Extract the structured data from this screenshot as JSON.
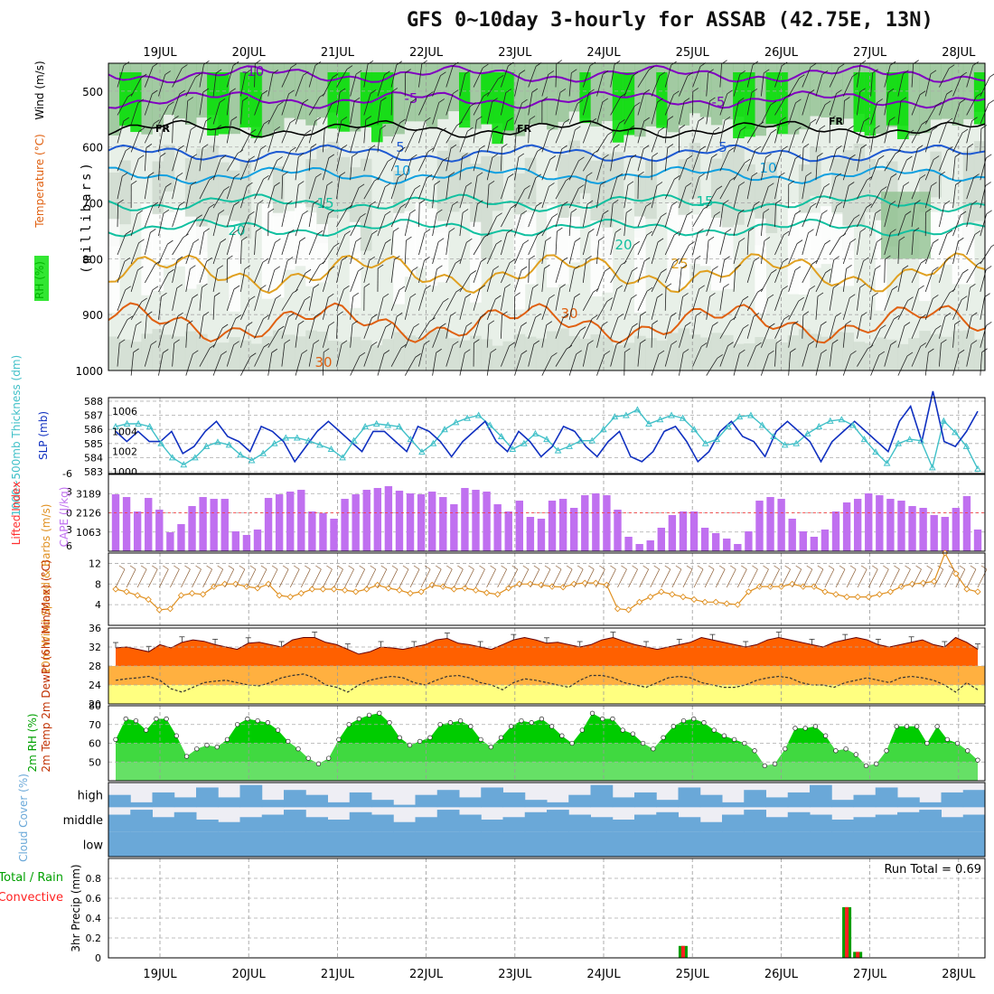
{
  "title": "GFS 0~10day 3-hourly for ASSAB (42.75E, 13N)",
  "colors": {
    "rh_light": "#d0dcd0",
    "rh_mid": "#90c090",
    "rh_dark": "#00e000",
    "temp_cold": "#8000c0",
    "temp_mid": "#1e5ad2",
    "temp_cool": "#10a0e0",
    "temp_warm": "#10c0a0",
    "temp_hot": "#e0a020",
    "temp_vhot": "#e06010",
    "thickness": "#40c0c8",
    "slp": "#1030c0",
    "cape": "#c070f0",
    "wind": "#e09020",
    "temp_fill": "#ff6000",
    "dew_fill": "#ffb040",
    "rh2m": "#00cc00",
    "cloud": "#6aa8d8",
    "precip_total": "#00a000",
    "precip_conv": "#ff2020"
  },
  "days": [
    "19JUL",
    "20JUL",
    "21JUL",
    "22JUL",
    "23JUL",
    "24JUL",
    "25JUL",
    "26JUL",
    "27JUL",
    "28JUL"
  ],
  "chart_data": [
    {
      "type": "heatmap",
      "name": "upper_air",
      "ylabel": "(millibars)",
      "legend_labels": [
        "RH (%)",
        "Temperature (°C)",
        "Wind (m/s)"
      ],
      "y_ticks": [
        500,
        600,
        700,
        800,
        900,
        1000
      ],
      "ylim": [
        1000,
        450
      ],
      "contour_labels": [
        "-10",
        "-5",
        "-5",
        "FR",
        "FR",
        "FR",
        "5",
        "5",
        "10",
        "10",
        "15",
        "15",
        "20",
        "20",
        "25",
        "30",
        "30"
      ],
      "isotherms": [
        {
          "temp": -10,
          "pressure": 470
        },
        {
          "temp": -5,
          "pressure": 515
        },
        {
          "temp": 0,
          "pressure": 568
        },
        {
          "temp": 5,
          "pressure": 612
        },
        {
          "temp": 10,
          "pressure": 650
        },
        {
          "temp": 15,
          "pressure": 700
        },
        {
          "temp": 20,
          "pressure": 745
        },
        {
          "temp": 25,
          "pressure": 825
        },
        {
          "temp": 30,
          "pressure": 915
        }
      ]
    },
    {
      "type": "line",
      "name": "thickness_slp",
      "ylabel_left": "1000~500mb Thickness (dm)",
      "ylabel_right": "SLP (mb)",
      "left_ticks": [
        "588",
        "587",
        "586",
        "585",
        "584",
        "583"
      ],
      "right_ticks": [
        "1006",
        "1004",
        "1002",
        "1000"
      ],
      "ylim_left": [
        583,
        588
      ],
      "ylim_right": [
        1000,
        1007
      ],
      "series": [
        {
          "name": "Thickness",
          "values": [
            586.2,
            586.4,
            586.4,
            586.2,
            585.0,
            584.0,
            583.5,
            584.0,
            584.8,
            585.1,
            584.9,
            584.2,
            583.8,
            584.3,
            585.0,
            585.4,
            585.4,
            585.2,
            584.9,
            584.6,
            584.0,
            585.2,
            586.2,
            586.4,
            586.3,
            586.2,
            585.3,
            584.4,
            585.0,
            586.0,
            586.5,
            586.8,
            587.0,
            586.3,
            585.5,
            584.6,
            585.0,
            585.7,
            585.3,
            584.5,
            584.8,
            585.2,
            585.2,
            586.0,
            586.9,
            587.0,
            587.4,
            586.4,
            586.7,
            587.0,
            586.8,
            586.0,
            585.0,
            585.3,
            586.2,
            586.9,
            587.0,
            586.3,
            585.5,
            584.9,
            585.0,
            585.7,
            586.2,
            586.6,
            586.7,
            586.3,
            585.3,
            584.4,
            583.6,
            585.0,
            585.3,
            585.2,
            583.3,
            586.6,
            585.8,
            584.8,
            583.2
          ]
        },
        {
          "name": "SLP",
          "values": [
            1004.0,
            1003.0,
            1004.0,
            1003.0,
            1003.0,
            1004.0,
            1001.8,
            1002.5,
            1004.0,
            1005.0,
            1003.5,
            1003.0,
            1002.0,
            1004.5,
            1004.0,
            1003.0,
            1001.0,
            1002.5,
            1004.0,
            1005.0,
            1004.0,
            1003.0,
            1002.0,
            1004.0,
            1004.0,
            1003.0,
            1002.0,
            1004.5,
            1004.0,
            1003.0,
            1001.5,
            1003.0,
            1004.0,
            1005.0,
            1003.0,
            1002.0,
            1004.0,
            1003.0,
            1001.5,
            1002.5,
            1004.5,
            1004.0,
            1002.5,
            1001.5,
            1003.0,
            1004.0,
            1001.5,
            1001.0,
            1002.0,
            1004.0,
            1004.5,
            1003.0,
            1001.0,
            1002.0,
            1004.0,
            1005.0,
            1003.5,
            1003.0,
            1001.5,
            1004.0,
            1005.0,
            1004.0,
            1003.0,
            1001.0,
            1003.0,
            1004.0,
            1005.0,
            1004.0,
            1003.0,
            1002.0,
            1005.0,
            1006.5,
            1003.0,
            1008.0,
            1003.0,
            1002.5,
            1004.0,
            1006.0
          ]
        }
      ]
    },
    {
      "type": "bar",
      "name": "cape_li",
      "ylabel_left": "Lifted Index",
      "ylabel_right": "CAPE (J/kg)",
      "li_ticks": [
        "-6",
        "-3",
        "0",
        "3",
        "6"
      ],
      "cape_ticks": [
        "3189",
        "2126",
        "1063"
      ],
      "ylim": [
        0,
        4252
      ],
      "values": [
        3150,
        3000,
        2200,
        2950,
        2300,
        1050,
        1500,
        2500,
        3000,
        2900,
        2900,
        1100,
        900,
        1200,
        2950,
        3150,
        3300,
        3400,
        2200,
        2100,
        1800,
        2900,
        3150,
        3400,
        3500,
        3600,
        3350,
        3200,
        3150,
        3300,
        3000,
        2600,
        3500,
        3400,
        3300,
        2600,
        2200,
        2800,
        1900,
        1800,
        2800,
        2900,
        2400,
        3100,
        3200,
        3100,
        2300,
        800,
        400,
        600,
        1300,
        2000,
        2200,
        2200,
        1300,
        1000,
        700,
        400,
        1100,
        2800,
        3000,
        2900,
        1800,
        1100,
        800,
        1200,
        2200,
        2700,
        2900,
        3200,
        3100,
        2900,
        2800,
        2500,
        2400,
        2000,
        1900,
        2400,
        3050,
        1200
      ]
    },
    {
      "type": "line",
      "name": "wind10m",
      "ylabel": "10m Wind Speed & Barbs (m/s)",
      "y_ticks": [
        "12",
        "8",
        "4"
      ],
      "ylim": [
        0,
        14
      ],
      "values": [
        7.0,
        6.5,
        5.8,
        5.0,
        3.0,
        3.2,
        5.8,
        6.2,
        6.0,
        7.5,
        8.0,
        8.0,
        7.5,
        7.2,
        8.0,
        5.8,
        5.5,
        6.2,
        7.0,
        7.0,
        7.0,
        6.8,
        6.5,
        7.0,
        7.8,
        7.2,
        6.8,
        6.2,
        6.5,
        7.8,
        7.5,
        7.0,
        7.2,
        6.8,
        6.3,
        6.0,
        7.2,
        8.0,
        8.0,
        7.8,
        7.5,
        7.4,
        8.0,
        8.2,
        8.2,
        7.8,
        3.2,
        3.0,
        4.5,
        5.5,
        6.5,
        6.0,
        5.5,
        5.0,
        4.5,
        4.5,
        4.2,
        4.0,
        6.5,
        7.5,
        7.5,
        7.5,
        8.0,
        7.5,
        7.5,
        6.5,
        6.0,
        5.5,
        5.5,
        5.5,
        6.0,
        6.5,
        7.5,
        8.0,
        8.2,
        8.5,
        14.0,
        10.0,
        7.0,
        6.5
      ]
    },
    {
      "type": "area",
      "name": "temp2m",
      "ylabel": "2m Temp 2m DewPt (6hr Min/Max) (°C)",
      "y_ticks": [
        "36",
        "32",
        "28",
        "24",
        "20"
      ],
      "ylim": [
        20,
        36
      ],
      "series": [
        {
          "name": "Temp",
          "values": [
            31.8,
            32.0,
            31.5,
            31.0,
            32.5,
            31.8,
            33.0,
            33.5,
            33.2,
            32.5,
            32.0,
            31.5,
            32.8,
            33.0,
            32.5,
            32.0,
            33.5,
            34.0,
            34.0,
            33.0,
            32.5,
            31.5,
            30.5,
            31.0,
            32.0,
            31.8,
            31.5,
            32.0,
            32.5,
            33.5,
            33.8,
            32.8,
            32.5,
            32.0,
            31.5,
            32.5,
            33.5,
            34.0,
            33.5,
            32.8,
            33.0,
            32.5,
            32.0,
            32.5,
            33.5,
            34.0,
            33.2,
            32.5,
            32.0,
            31.5,
            32.0,
            32.5,
            33.0,
            34.0,
            33.5,
            33.0,
            32.5,
            32.0,
            32.5,
            33.5,
            34.0,
            33.5,
            33.0,
            32.5,
            32.0,
            33.0,
            33.5,
            34.0,
            33.5,
            32.5,
            32.0,
            32.5,
            33.0,
            33.5,
            32.5,
            32.0,
            34.0,
            33.0,
            31.5
          ]
        },
        {
          "name": "DewPt",
          "values": [
            25.0,
            25.3,
            25.5,
            25.8,
            25.0,
            23.2,
            22.5,
            23.5,
            24.5,
            24.8,
            25.0,
            24.5,
            24.0,
            23.8,
            24.5,
            25.5,
            26.0,
            26.3,
            25.5,
            24.0,
            23.5,
            22.5,
            24.0,
            25.0,
            25.5,
            25.8,
            25.5,
            24.5,
            24.0,
            25.0,
            25.8,
            26.0,
            25.5,
            24.5,
            24.0,
            23.0,
            24.5,
            25.3,
            25.0,
            24.5,
            24.0,
            23.5,
            25.0,
            26.0,
            26.0,
            25.5,
            24.5,
            24.0,
            23.5,
            24.5,
            25.5,
            25.8,
            25.5,
            24.5,
            24.0,
            23.5,
            23.5,
            24.0,
            25.0,
            25.5,
            25.8,
            25.5,
            24.5,
            24.0,
            24.0,
            23.5,
            24.5,
            25.0,
            25.5,
            25.0,
            24.5,
            25.5,
            25.8,
            25.5,
            25.0,
            24.0,
            22.5,
            24.5,
            23.0
          ]
        }
      ]
    },
    {
      "type": "area",
      "name": "rh2m",
      "ylabel": "2m RH (%)",
      "y_ticks": [
        "80",
        "70",
        "60",
        "50"
      ],
      "ylim": [
        40,
        80
      ],
      "values": [
        62,
        73,
        72,
        67,
        73,
        73,
        64,
        53,
        57,
        59,
        58,
        62,
        70,
        73,
        72,
        71,
        67,
        61,
        57,
        52,
        49,
        52,
        62,
        70,
        73,
        75,
        76,
        71,
        63,
        59,
        61,
        63,
        70,
        71,
        72,
        69,
        62,
        58,
        63,
        69,
        72,
        71,
        73,
        69,
        64,
        60,
        67,
        76,
        73,
        73,
        67,
        65,
        60,
        57,
        63,
        69,
        72,
        73,
        71,
        67,
        64,
        62,
        60,
        56,
        48,
        49,
        57,
        68,
        68,
        69,
        64,
        56,
        57,
        54,
        48,
        49,
        56,
        69,
        69,
        69,
        60,
        69,
        62,
        60,
        56,
        51
      ]
    },
    {
      "type": "bar",
      "name": "cloud_cover",
      "ylabel": "Cloud Cover (%)",
      "levels": [
        "high",
        "middle",
        "low"
      ],
      "series": [
        {
          "name": "high",
          "values": [
            50,
            20,
            60,
            40,
            80,
            40,
            90,
            30,
            70,
            50,
            20,
            60,
            30,
            10,
            50,
            70,
            40,
            80,
            60,
            30,
            20,
            50,
            90,
            40,
            60,
            30,
            80,
            50,
            20,
            70,
            40,
            60,
            90,
            30,
            50,
            80,
            40,
            20,
            60,
            70
          ]
        },
        {
          "name": "middle",
          "values": [
            70,
            90,
            60,
            80,
            50,
            40,
            60,
            70,
            90,
            60,
            50,
            80,
            70,
            40,
            60,
            90,
            70,
            50,
            60,
            80,
            90,
            70,
            60,
            50,
            70,
            80,
            60,
            40,
            70,
            90,
            60,
            80,
            70,
            50,
            60,
            70,
            80,
            90,
            60,
            70
          ]
        },
        {
          "name": "low",
          "values": [
            100,
            100,
            100,
            100,
            100,
            100,
            100,
            100,
            100,
            100,
            100,
            100,
            100,
            100,
            100,
            100,
            100,
            100,
            100,
            100,
            100,
            100,
            100,
            100,
            100,
            100,
            100,
            100,
            100,
            100,
            100,
            100,
            100,
            100,
            100,
            100,
            100,
            100,
            100,
            100
          ]
        }
      ]
    },
    {
      "type": "bar",
      "name": "precip",
      "ylabel_left": "Total / Rain Convective",
      "ylabel": "3hr Precip (mm)",
      "y_ticks": [
        "0.8",
        "0.6",
        "0.4",
        "0.2",
        "0"
      ],
      "ylim": [
        0,
        1.0
      ],
      "annotation": "Run Total = 0.69",
      "bars": [
        {
          "slot": 52,
          "total": 0.12,
          "convective": 0.12
        },
        {
          "slot": 67,
          "total": 0.51,
          "convective": 0.51
        },
        {
          "slot": 68,
          "total": 0.06,
          "convective": 0.06
        }
      ]
    }
  ]
}
